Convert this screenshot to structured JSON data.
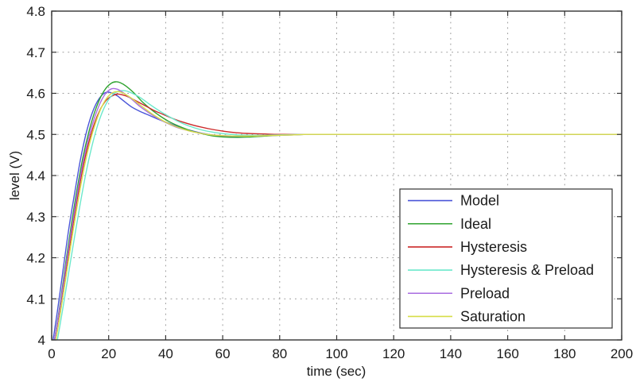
{
  "figure": {
    "background": "#ffffff",
    "frame_color": "#333333",
    "grid_color": "#9a9a9a",
    "text_color": "#1a1a1a"
  },
  "chart_data": {
    "type": "line",
    "title": "",
    "xlabel": "time (sec)",
    "ylabel": "level (V)",
    "xlim": [
      0,
      200
    ],
    "ylim": [
      4,
      4.8
    ],
    "xticks": [
      0,
      20,
      40,
      60,
      80,
      100,
      120,
      140,
      160,
      180,
      200
    ],
    "xtick_labels": [
      "0",
      "20",
      "40",
      "60",
      "80",
      "100",
      "120",
      "140",
      "160",
      "180",
      "200"
    ],
    "yticks": [
      4,
      4.1,
      4.2,
      4.3,
      4.4,
      4.5,
      4.6,
      4.7,
      4.8
    ],
    "ytick_labels": [
      "4",
      "4.1",
      "4.2",
      "4.3",
      "4.4",
      "4.5",
      "4.6",
      "4.7",
      "4.8"
    ],
    "grid": "dotted",
    "legend": {
      "position": "lower-right",
      "border_color": "#333333",
      "background": "#ffffff"
    },
    "series": [
      {
        "name": "Model",
        "color": "#4a55d8",
        "points": [
          [
            0.5,
            4.0
          ],
          [
            2,
            4.07
          ],
          [
            4,
            4.17
          ],
          [
            6,
            4.27
          ],
          [
            8,
            4.355
          ],
          [
            10,
            4.435
          ],
          [
            12,
            4.5
          ],
          [
            14,
            4.548
          ],
          [
            16,
            4.58
          ],
          [
            18,
            4.598
          ],
          [
            19.5,
            4.603
          ],
          [
            21,
            4.601
          ],
          [
            23,
            4.594
          ],
          [
            25,
            4.583
          ],
          [
            28,
            4.567
          ],
          [
            31,
            4.556
          ],
          [
            34,
            4.547
          ],
          [
            37,
            4.538
          ],
          [
            40,
            4.53
          ],
          [
            44,
            4.52
          ],
          [
            48,
            4.511
          ],
          [
            52,
            4.504
          ],
          [
            56,
            4.499
          ],
          [
            60,
            4.496
          ],
          [
            65,
            4.494
          ],
          [
            70,
            4.495
          ],
          [
            75,
            4.497
          ],
          [
            80,
            4.499
          ],
          [
            85,
            4.5
          ],
          [
            90,
            4.5
          ],
          [
            100,
            4.5
          ],
          [
            120,
            4.5
          ],
          [
            140,
            4.5
          ],
          [
            160,
            4.5
          ],
          [
            180,
            4.5
          ],
          [
            200,
            4.5
          ]
        ]
      },
      {
        "name": "Ideal",
        "color": "#2fa32f",
        "points": [
          [
            1,
            4.0
          ],
          [
            3,
            4.09
          ],
          [
            5,
            4.19
          ],
          [
            7,
            4.285
          ],
          [
            9,
            4.37
          ],
          [
            11,
            4.445
          ],
          [
            13,
            4.505
          ],
          [
            15,
            4.553
          ],
          [
            17,
            4.588
          ],
          [
            19,
            4.612
          ],
          [
            21,
            4.625
          ],
          [
            22.5,
            4.628
          ],
          [
            24,
            4.626
          ],
          [
            26,
            4.618
          ],
          [
            29,
            4.6
          ],
          [
            32,
            4.578
          ],
          [
            35,
            4.56
          ],
          [
            38,
            4.545
          ],
          [
            41,
            4.532
          ],
          [
            44,
            4.522
          ],
          [
            48,
            4.511
          ],
          [
            52,
            4.503
          ],
          [
            56,
            4.497
          ],
          [
            60,
            4.494
          ],
          [
            65,
            4.493
          ],
          [
            70,
            4.494
          ],
          [
            75,
            4.496
          ],
          [
            80,
            4.498
          ],
          [
            85,
            4.499
          ],
          [
            90,
            4.5
          ],
          [
            100,
            4.5
          ],
          [
            120,
            4.5
          ],
          [
            140,
            4.5
          ],
          [
            160,
            4.5
          ],
          [
            180,
            4.5
          ],
          [
            200,
            4.5
          ]
        ]
      },
      {
        "name": "Hysteresis",
        "color": "#cc2929",
        "points": [
          [
            1,
            4.0
          ],
          [
            3,
            4.08
          ],
          [
            5,
            4.17
          ],
          [
            7,
            4.26
          ],
          [
            9,
            4.345
          ],
          [
            11,
            4.42
          ],
          [
            13,
            4.48
          ],
          [
            15,
            4.527
          ],
          [
            17,
            4.56
          ],
          [
            19,
            4.582
          ],
          [
            21,
            4.593
          ],
          [
            23,
            4.598
          ],
          [
            25,
            4.596
          ],
          [
            27,
            4.591
          ],
          [
            30,
            4.58
          ],
          [
            33,
            4.569
          ],
          [
            36,
            4.558
          ],
          [
            39,
            4.549
          ],
          [
            42,
            4.54
          ],
          [
            46,
            4.53
          ],
          [
            50,
            4.522
          ],
          [
            55,
            4.514
          ],
          [
            60,
            4.508
          ],
          [
            65,
            4.504
          ],
          [
            70,
            4.502
          ],
          [
            75,
            4.501
          ],
          [
            80,
            4.5
          ],
          [
            90,
            4.5
          ],
          [
            100,
            4.5
          ],
          [
            120,
            4.5
          ],
          [
            140,
            4.5
          ],
          [
            160,
            4.5
          ],
          [
            180,
            4.5
          ],
          [
            200,
            4.5
          ]
        ]
      },
      {
        "name": "Hysteresis & Preload",
        "color": "#6ce8cb",
        "points": [
          [
            2,
            4.0
          ],
          [
            4,
            4.08
          ],
          [
            6,
            4.165
          ],
          [
            8,
            4.25
          ],
          [
            10,
            4.33
          ],
          [
            12,
            4.405
          ],
          [
            14,
            4.468
          ],
          [
            16,
            4.52
          ],
          [
            18,
            4.558
          ],
          [
            20,
            4.585
          ],
          [
            22,
            4.6
          ],
          [
            24,
            4.606
          ],
          [
            26,
            4.606
          ],
          [
            28,
            4.601
          ],
          [
            31,
            4.59
          ],
          [
            34,
            4.575
          ],
          [
            37,
            4.561
          ],
          [
            40,
            4.548
          ],
          [
            44,
            4.533
          ],
          [
            48,
            4.521
          ],
          [
            52,
            4.512
          ],
          [
            56,
            4.506
          ],
          [
            60,
            4.502
          ],
          [
            65,
            4.499
          ],
          [
            70,
            4.498
          ],
          [
            75,
            4.498
          ],
          [
            80,
            4.499
          ],
          [
            90,
            4.5
          ],
          [
            100,
            4.5
          ],
          [
            120,
            4.5
          ],
          [
            140,
            4.5
          ],
          [
            160,
            4.5
          ],
          [
            180,
            4.5
          ],
          [
            200,
            4.5
          ]
        ]
      },
      {
        "name": "Preload",
        "color": "#a96ce0",
        "points": [
          [
            1,
            4.0
          ],
          [
            3,
            4.085
          ],
          [
            5,
            4.18
          ],
          [
            7,
            4.272
          ],
          [
            9,
            4.357
          ],
          [
            11,
            4.432
          ],
          [
            13,
            4.493
          ],
          [
            15,
            4.54
          ],
          [
            17,
            4.576
          ],
          [
            19,
            4.6
          ],
          [
            21,
            4.611
          ],
          [
            23,
            4.61
          ],
          [
            25,
            4.602
          ],
          [
            28,
            4.586
          ],
          [
            31,
            4.568
          ],
          [
            34,
            4.553
          ],
          [
            37,
            4.54
          ],
          [
            40,
            4.529
          ],
          [
            44,
            4.517
          ],
          [
            48,
            4.509
          ],
          [
            52,
            4.503
          ],
          [
            56,
            4.499
          ],
          [
            60,
            4.497
          ],
          [
            65,
            4.496
          ],
          [
            70,
            4.496
          ],
          [
            75,
            4.497
          ],
          [
            80,
            4.498
          ],
          [
            85,
            4.499
          ],
          [
            90,
            4.5
          ],
          [
            100,
            4.5
          ],
          [
            120,
            4.5
          ],
          [
            140,
            4.5
          ],
          [
            160,
            4.5
          ],
          [
            180,
            4.5
          ],
          [
            200,
            4.5
          ]
        ]
      },
      {
        "name": "Saturation",
        "color": "#d7de48",
        "points": [
          [
            1.5,
            4.0
          ],
          [
            3.5,
            4.085
          ],
          [
            5.5,
            4.175
          ],
          [
            7.5,
            4.265
          ],
          [
            9.5,
            4.348
          ],
          [
            11.5,
            4.422
          ],
          [
            13.5,
            4.483
          ],
          [
            15.5,
            4.53
          ],
          [
            17.5,
            4.566
          ],
          [
            19.5,
            4.59
          ],
          [
            21.5,
            4.602
          ],
          [
            23.5,
            4.604
          ],
          [
            25.5,
            4.599
          ],
          [
            28,
            4.588
          ],
          [
            31,
            4.572
          ],
          [
            34,
            4.556
          ],
          [
            37,
            4.542
          ],
          [
            40,
            4.53
          ],
          [
            44,
            4.518
          ],
          [
            48,
            4.509
          ],
          [
            52,
            4.503
          ],
          [
            56,
            4.499
          ],
          [
            60,
            4.497
          ],
          [
            65,
            4.496
          ],
          [
            70,
            4.496
          ],
          [
            75,
            4.497
          ],
          [
            80,
            4.498
          ],
          [
            85,
            4.499
          ],
          [
            90,
            4.5
          ],
          [
            100,
            4.5
          ],
          [
            120,
            4.5
          ],
          [
            140,
            4.5
          ],
          [
            160,
            4.5
          ],
          [
            180,
            4.5
          ],
          [
            200,
            4.5
          ]
        ]
      }
    ]
  }
}
